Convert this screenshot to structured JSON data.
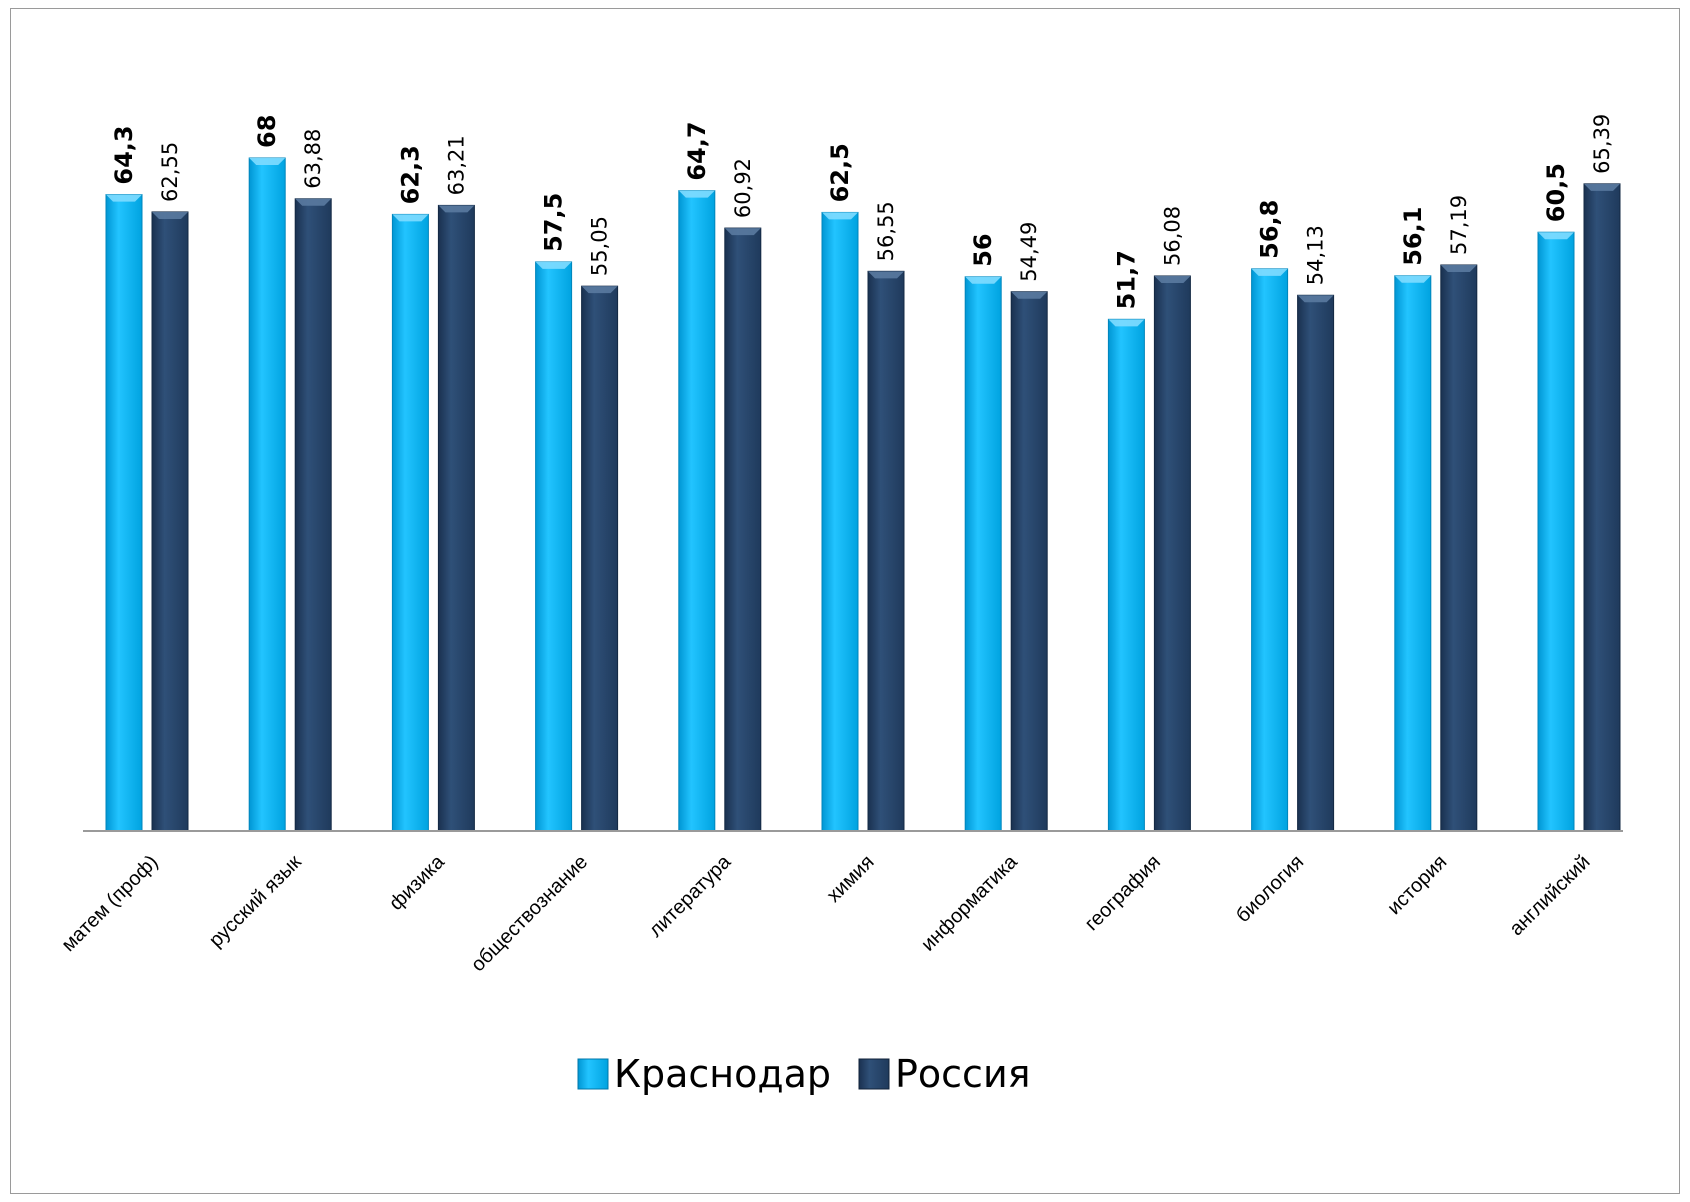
{
  "chart_data": {
    "type": "bar",
    "categories": [
      "матем (проф)",
      "русский язык",
      "физика",
      "обществознание",
      "литература",
      "химия",
      "информатика",
      "география",
      "биология",
      "история",
      "английский"
    ],
    "series": [
      {
        "name": "Краснодар",
        "color": "#00b0f0",
        "values": [
          64.3,
          68,
          62.3,
          57.5,
          64.7,
          62.5,
          56,
          51.7,
          56.8,
          56.1,
          60.5
        ],
        "labels": [
          "64,3",
          "68",
          "62,3",
          "57,5",
          "64,7",
          "62,5",
          "56",
          "51,7",
          "56,8",
          "56,1",
          "60,5"
        ]
      },
      {
        "name": "Россия",
        "color": "#243f60",
        "values": [
          62.55,
          63.88,
          63.21,
          55.05,
          60.92,
          56.55,
          54.49,
          56.08,
          54.13,
          57.19,
          65.39
        ],
        "labels": [
          "62,55",
          "63,88",
          "63,21",
          "55,05",
          "60,92",
          "56,55",
          "54,49",
          "56,08",
          "54,13",
          "57,19",
          "65,39"
        ]
      }
    ],
    "ylim": [
      0,
      68
    ],
    "grid": false,
    "legend": "bottom"
  }
}
